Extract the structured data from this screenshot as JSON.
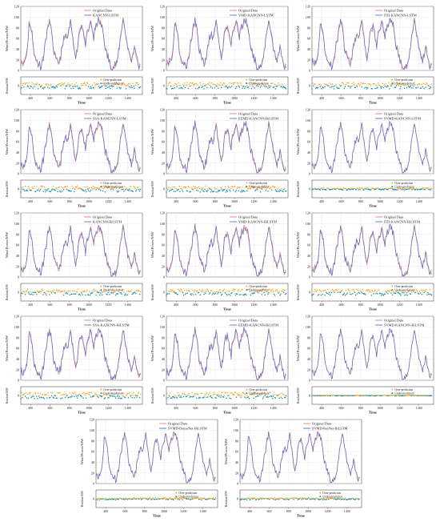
{
  "figure": {
    "labels": {
      "y_main": "Wind Power/MW",
      "y_resid": "Residual/MW",
      "x": "Time",
      "legend_original": "Original Data",
      "legend_over": "Over-prediction",
      "legend_under": "Under-prediction"
    },
    "main_yticks": [
      "0",
      "20",
      "40",
      "60",
      "80",
      "100",
      "120"
    ],
    "resid_yticks": [
      "0"
    ],
    "xticks": [
      "400",
      "600",
      "800",
      "1000",
      "1200",
      "1400"
    ],
    "colors": {
      "original": "#e8828a",
      "predicted": "#5a6fc7",
      "over": "#f5a623",
      "under": "#1a8fa3",
      "grid": "#e3e3e3",
      "axis": "#333333"
    }
  },
  "chart_data": [
    {
      "type": "line",
      "model": "KANCNN-LSTM",
      "ylim": [
        0,
        120
      ],
      "xlim": [
        300,
        1550
      ],
      "residual_spread": "large"
    },
    {
      "type": "line",
      "model": "VMD-KANCNN-LSTM",
      "ylim": [
        0,
        120
      ],
      "xlim": [
        300,
        1550
      ],
      "residual_spread": "large"
    },
    {
      "type": "line",
      "model": "ITD-KANCNN-LSTM",
      "ylim": [
        0,
        120
      ],
      "xlim": [
        300,
        1550
      ],
      "residual_spread": "large"
    },
    {
      "type": "line",
      "model": "SSA-KANCNN-LSTM",
      "ylim": [
        0,
        120
      ],
      "xlim": [
        300,
        1550
      ],
      "residual_spread": "large"
    },
    {
      "type": "line",
      "model": "EEMD-KANCNN-BiLSTM",
      "ylim": [
        0,
        120
      ],
      "xlim": [
        300,
        1550
      ],
      "residual_spread": "large"
    },
    {
      "type": "line",
      "model": "SVMD-KANCNN-LSTM",
      "ylim": [
        0,
        120
      ],
      "xlim": [
        300,
        1550
      ],
      "residual_spread": "small"
    },
    {
      "type": "line",
      "model": "KANCNN-BiLSTM",
      "ylim": [
        0,
        120
      ],
      "xlim": [
        300,
        1550
      ],
      "residual_spread": "large"
    },
    {
      "type": "line",
      "model": "VMD-KANCNN-BiLSTM",
      "ylim": [
        0,
        120
      ],
      "xlim": [
        300,
        1550
      ],
      "residual_spread": "large"
    },
    {
      "type": "line",
      "model": "ITD-KANCNN-BiLSTM",
      "ylim": [
        0,
        120
      ],
      "xlim": [
        300,
        1550
      ],
      "residual_spread": "large"
    },
    {
      "type": "line",
      "model": "SSA-KANCNN-BiLSTM",
      "ylim": [
        0,
        120
      ],
      "xlim": [
        300,
        1550
      ],
      "residual_spread": "large"
    },
    {
      "type": "line",
      "model": "EEMD-KANCNN-BiLSTM",
      "ylim": [
        0,
        120
      ],
      "xlim": [
        300,
        1550
      ],
      "residual_spread": "large"
    },
    {
      "type": "line",
      "model": "SVMD-KANCNN-BiLSTM",
      "ylim": [
        0,
        120
      ],
      "xlim": [
        300,
        1550
      ],
      "residual_spread": "tiny"
    },
    {
      "type": "line",
      "model": "SVMD-DenseNet-BiLSTM",
      "ylim": [
        0,
        120
      ],
      "xlim": [
        300,
        1550
      ],
      "residual_spread": "small"
    },
    {
      "type": "line",
      "model": "SVMD-ResNet-BiLSTM",
      "ylim": [
        0,
        120
      ],
      "xlim": [
        300,
        1550
      ],
      "residual_spread": "small"
    }
  ],
  "series_profile": {
    "x": [
      300,
      330,
      360,
      390,
      420,
      450,
      480,
      510,
      540,
      570,
      600,
      630,
      660,
      690,
      720,
      750,
      780,
      810,
      840,
      870,
      900,
      930,
      960,
      990,
      1020,
      1050,
      1080,
      1110,
      1140,
      1170,
      1200,
      1230,
      1260,
      1290,
      1320,
      1350,
      1380,
      1410,
      1440,
      1470,
      1500,
      1530
    ],
    "y": [
      22,
      12,
      28,
      95,
      60,
      18,
      14,
      8,
      38,
      72,
      96,
      48,
      20,
      12,
      34,
      66,
      58,
      90,
      52,
      24,
      76,
      88,
      45,
      70,
      92,
      62,
      86,
      94,
      78,
      40,
      22,
      8,
      6,
      12,
      58,
      96,
      66,
      32,
      18,
      48,
      12,
      6
    ]
  }
}
